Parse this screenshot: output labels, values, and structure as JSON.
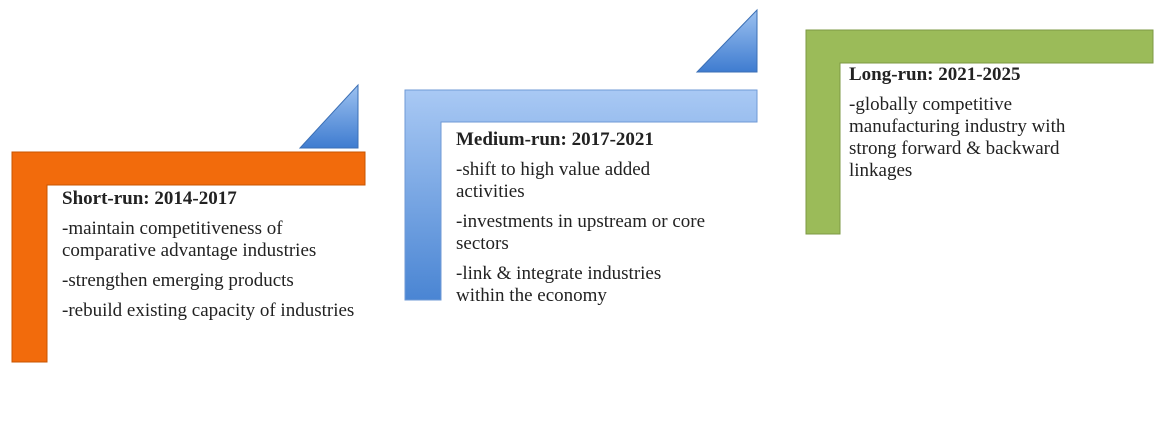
{
  "stages": [
    {
      "title": "Short-run: 2014-2017",
      "items": [
        "-maintain competitiveness of comparative advantage industries",
        "-strengthen emerging products",
        "-rebuild existing capacity of industries"
      ]
    },
    {
      "title": "Medium-run: 2017-2021",
      "items": [
        "-shift to high value added activities",
        "-investments in upstream or core sectors",
        "-link & integrate industries within the economy"
      ]
    },
    {
      "title": "Long-run: 2021-2025",
      "items": [
        "-globally competitive manufacturing industry with strong forward & backward linkages"
      ]
    }
  ]
}
